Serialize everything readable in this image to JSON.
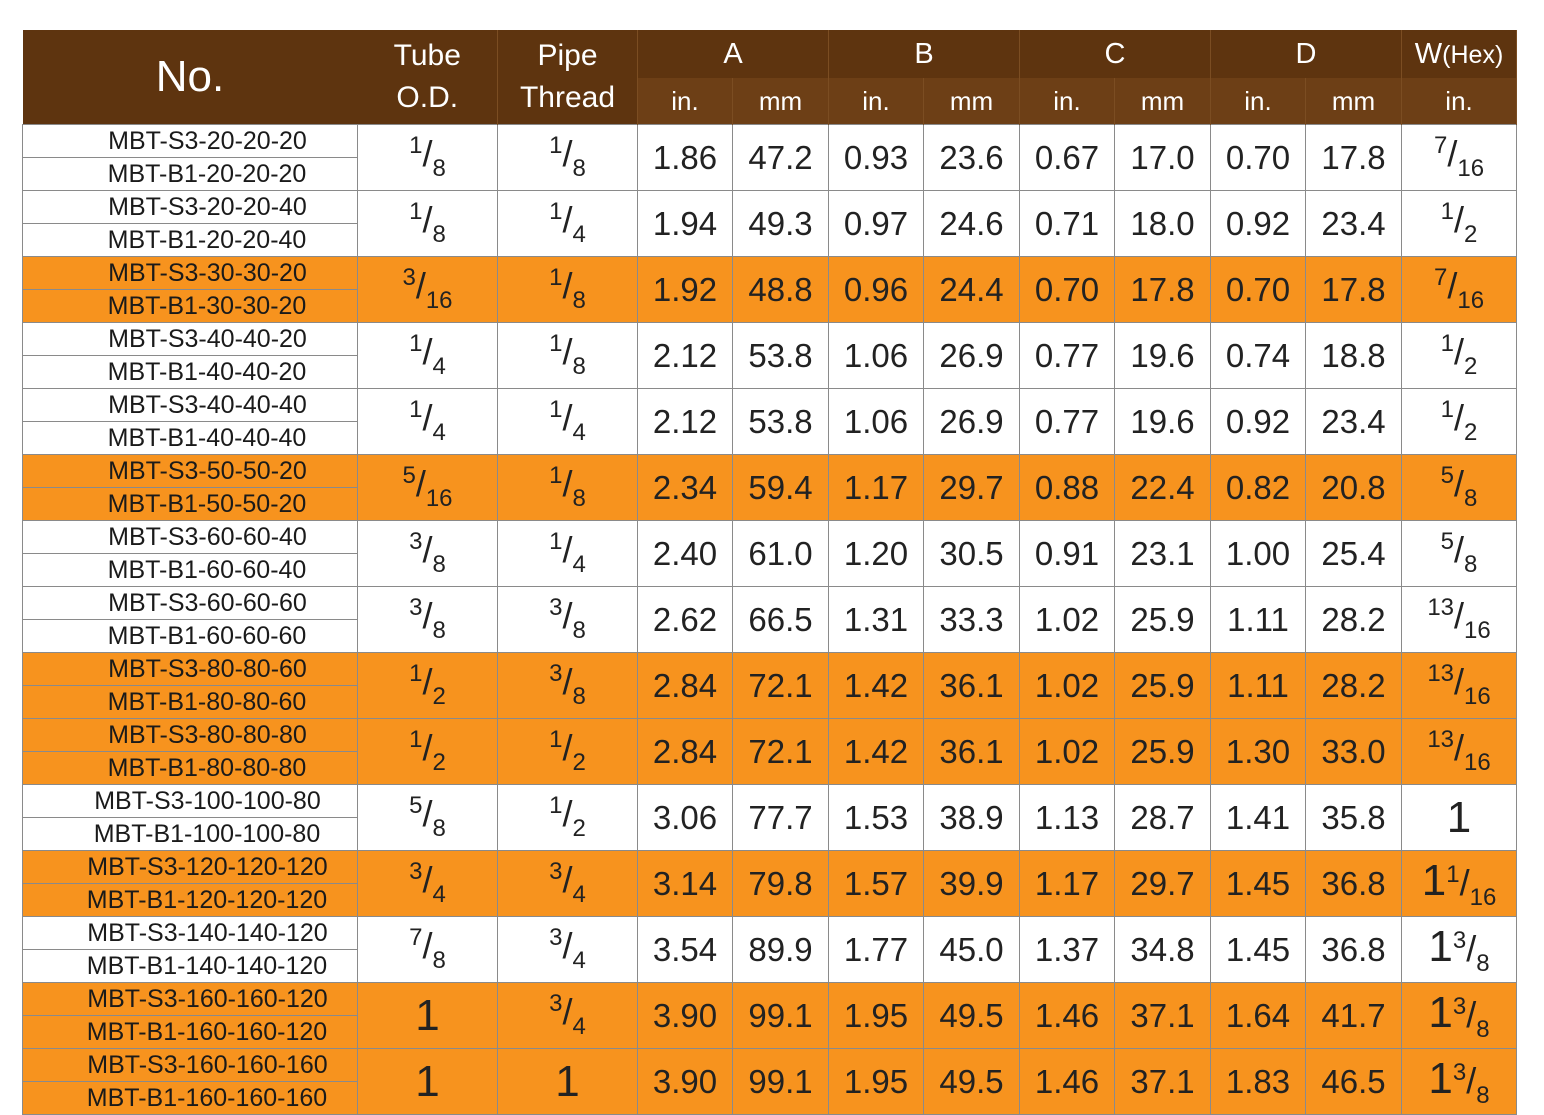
{
  "colors": {
    "header_bg": "#5e340f",
    "row_highlight": "#f7931e",
    "row_plain": "#ffffff"
  },
  "header": {
    "no": "No.",
    "tube_od": [
      "Tube",
      "O.D."
    ],
    "pipe_thread": [
      "Pipe",
      "Thread"
    ],
    "groups": [
      "A",
      "B",
      "C",
      "D"
    ],
    "hex": "W",
    "hex_suffix": "(Hex)",
    "unit_in": "in.",
    "unit_mm": "mm"
  },
  "rows": [
    {
      "parts": [
        "MBT-S3-20-20-20",
        "MBT-B1-20-20-20"
      ],
      "tube": {
        "num": "1",
        "den": "8"
      },
      "pipe": {
        "num": "1",
        "den": "8"
      },
      "A": [
        "1.86",
        "47.2"
      ],
      "B": [
        "0.93",
        "23.6"
      ],
      "C": [
        "0.67",
        "17.0"
      ],
      "D": [
        "0.70",
        "17.8"
      ],
      "W": {
        "num": "7",
        "den": "16"
      },
      "highlight": false
    },
    {
      "parts": [
        "MBT-S3-20-20-40",
        "MBT-B1-20-20-40"
      ],
      "tube": {
        "num": "1",
        "den": "8"
      },
      "pipe": {
        "num": "1",
        "den": "4"
      },
      "A": [
        "1.94",
        "49.3"
      ],
      "B": [
        "0.97",
        "24.6"
      ],
      "C": [
        "0.71",
        "18.0"
      ],
      "D": [
        "0.92",
        "23.4"
      ],
      "W": {
        "num": "1",
        "den": "2"
      },
      "highlight": false
    },
    {
      "parts": [
        "MBT-S3-30-30-20",
        "MBT-B1-30-30-20"
      ],
      "tube": {
        "num": "3",
        "den": "16"
      },
      "pipe": {
        "num": "1",
        "den": "8"
      },
      "A": [
        "1.92",
        "48.8"
      ],
      "B": [
        "0.96",
        "24.4"
      ],
      "C": [
        "0.70",
        "17.8"
      ],
      "D": [
        "0.70",
        "17.8"
      ],
      "W": {
        "num": "7",
        "den": "16"
      },
      "highlight": true
    },
    {
      "parts": [
        "MBT-S3-40-40-20",
        "MBT-B1-40-40-20"
      ],
      "tube": {
        "num": "1",
        "den": "4"
      },
      "pipe": {
        "num": "1",
        "den": "8"
      },
      "A": [
        "2.12",
        "53.8"
      ],
      "B": [
        "1.06",
        "26.9"
      ],
      "C": [
        "0.77",
        "19.6"
      ],
      "D": [
        "0.74",
        "18.8"
      ],
      "W": {
        "num": "1",
        "den": "2"
      },
      "highlight": false
    },
    {
      "parts": [
        "MBT-S3-40-40-40",
        "MBT-B1-40-40-40"
      ],
      "tube": {
        "num": "1",
        "den": "4"
      },
      "pipe": {
        "num": "1",
        "den": "4"
      },
      "A": [
        "2.12",
        "53.8"
      ],
      "B": [
        "1.06",
        "26.9"
      ],
      "C": [
        "0.77",
        "19.6"
      ],
      "D": [
        "0.92",
        "23.4"
      ],
      "W": {
        "num": "1",
        "den": "2"
      },
      "highlight": false
    },
    {
      "parts": [
        "MBT-S3-50-50-20",
        "MBT-B1-50-50-20"
      ],
      "tube": {
        "num": "5",
        "den": "16"
      },
      "pipe": {
        "num": "1",
        "den": "8"
      },
      "A": [
        "2.34",
        "59.4"
      ],
      "B": [
        "1.17",
        "29.7"
      ],
      "C": [
        "0.88",
        "22.4"
      ],
      "D": [
        "0.82",
        "20.8"
      ],
      "W": {
        "num": "5",
        "den": "8"
      },
      "highlight": true
    },
    {
      "parts": [
        "MBT-S3-60-60-40",
        "MBT-B1-60-60-40"
      ],
      "tube": {
        "num": "3",
        "den": "8"
      },
      "pipe": {
        "num": "1",
        "den": "4"
      },
      "A": [
        "2.40",
        "61.0"
      ],
      "B": [
        "1.20",
        "30.5"
      ],
      "C": [
        "0.91",
        "23.1"
      ],
      "D": [
        "1.00",
        "25.4"
      ],
      "W": {
        "num": "5",
        "den": "8"
      },
      "highlight": false
    },
    {
      "parts": [
        "MBT-S3-60-60-60",
        "MBT-B1-60-60-60"
      ],
      "tube": {
        "num": "3",
        "den": "8"
      },
      "pipe": {
        "num": "3",
        "den": "8"
      },
      "A": [
        "2.62",
        "66.5"
      ],
      "B": [
        "1.31",
        "33.3"
      ],
      "C": [
        "1.02",
        "25.9"
      ],
      "D": [
        "1.11",
        "28.2"
      ],
      "W": {
        "num": "13",
        "den": "16"
      },
      "highlight": false
    },
    {
      "parts": [
        "MBT-S3-80-80-60",
        "MBT-B1-80-80-60"
      ],
      "tube": {
        "num": "1",
        "den": "2"
      },
      "pipe": {
        "num": "3",
        "den": "8"
      },
      "A": [
        "2.84",
        "72.1"
      ],
      "B": [
        "1.42",
        "36.1"
      ],
      "C": [
        "1.02",
        "25.9"
      ],
      "D": [
        "1.11",
        "28.2"
      ],
      "W": {
        "num": "13",
        "den": "16"
      },
      "highlight": true
    },
    {
      "parts": [
        "MBT-S3-80-80-80",
        "MBT-B1-80-80-80"
      ],
      "tube": {
        "num": "1",
        "den": "2"
      },
      "pipe": {
        "num": "1",
        "den": "2"
      },
      "A": [
        "2.84",
        "72.1"
      ],
      "B": [
        "1.42",
        "36.1"
      ],
      "C": [
        "1.02",
        "25.9"
      ],
      "D": [
        "1.30",
        "33.0"
      ],
      "W": {
        "num": "13",
        "den": "16"
      },
      "highlight": true
    },
    {
      "parts": [
        "MBT-S3-100-100-80",
        "MBT-B1-100-100-80"
      ],
      "tube": {
        "num": "5",
        "den": "8"
      },
      "pipe": {
        "num": "1",
        "den": "2"
      },
      "A": [
        "3.06",
        "77.7"
      ],
      "B": [
        "1.53",
        "38.9"
      ],
      "C": [
        "1.13",
        "28.7"
      ],
      "D": [
        "1.41",
        "35.8"
      ],
      "W": {
        "whole": "1"
      },
      "highlight": false
    },
    {
      "parts": [
        "MBT-S3-120-120-120",
        "MBT-B1-120-120-120"
      ],
      "tube": {
        "num": "3",
        "den": "4"
      },
      "pipe": {
        "num": "3",
        "den": "4"
      },
      "A": [
        "3.14",
        "79.8"
      ],
      "B": [
        "1.57",
        "39.9"
      ],
      "C": [
        "1.17",
        "29.7"
      ],
      "D": [
        "1.45",
        "36.8"
      ],
      "W": {
        "whole": "1",
        "num": "1",
        "den": "16"
      },
      "highlight": true
    },
    {
      "parts": [
        "MBT-S3-140-140-120",
        "MBT-B1-140-140-120"
      ],
      "tube": {
        "num": "7",
        "den": "8"
      },
      "pipe": {
        "num": "3",
        "den": "4"
      },
      "A": [
        "3.54",
        "89.9"
      ],
      "B": [
        "1.77",
        "45.0"
      ],
      "C": [
        "1.37",
        "34.8"
      ],
      "D": [
        "1.45",
        "36.8"
      ],
      "W": {
        "whole": "1",
        "num": "3",
        "den": "8"
      },
      "highlight": false
    },
    {
      "parts": [
        "MBT-S3-160-160-120",
        "MBT-B1-160-160-120"
      ],
      "tube": {
        "whole": "1"
      },
      "pipe": {
        "num": "3",
        "den": "4"
      },
      "A": [
        "3.90",
        "99.1"
      ],
      "B": [
        "1.95",
        "49.5"
      ],
      "C": [
        "1.46",
        "37.1"
      ],
      "D": [
        "1.64",
        "41.7"
      ],
      "W": {
        "whole": "1",
        "num": "3",
        "den": "8"
      },
      "highlight": true
    },
    {
      "parts": [
        "MBT-S3-160-160-160",
        "MBT-B1-160-160-160"
      ],
      "tube": {
        "whole": "1"
      },
      "pipe": {
        "whole": "1"
      },
      "A": [
        "3.90",
        "99.1"
      ],
      "B": [
        "1.95",
        "49.5"
      ],
      "C": [
        "1.46",
        "37.1"
      ],
      "D": [
        "1.83",
        "46.5"
      ],
      "W": {
        "whole": "1",
        "num": "3",
        "den": "8"
      },
      "highlight": true
    }
  ]
}
